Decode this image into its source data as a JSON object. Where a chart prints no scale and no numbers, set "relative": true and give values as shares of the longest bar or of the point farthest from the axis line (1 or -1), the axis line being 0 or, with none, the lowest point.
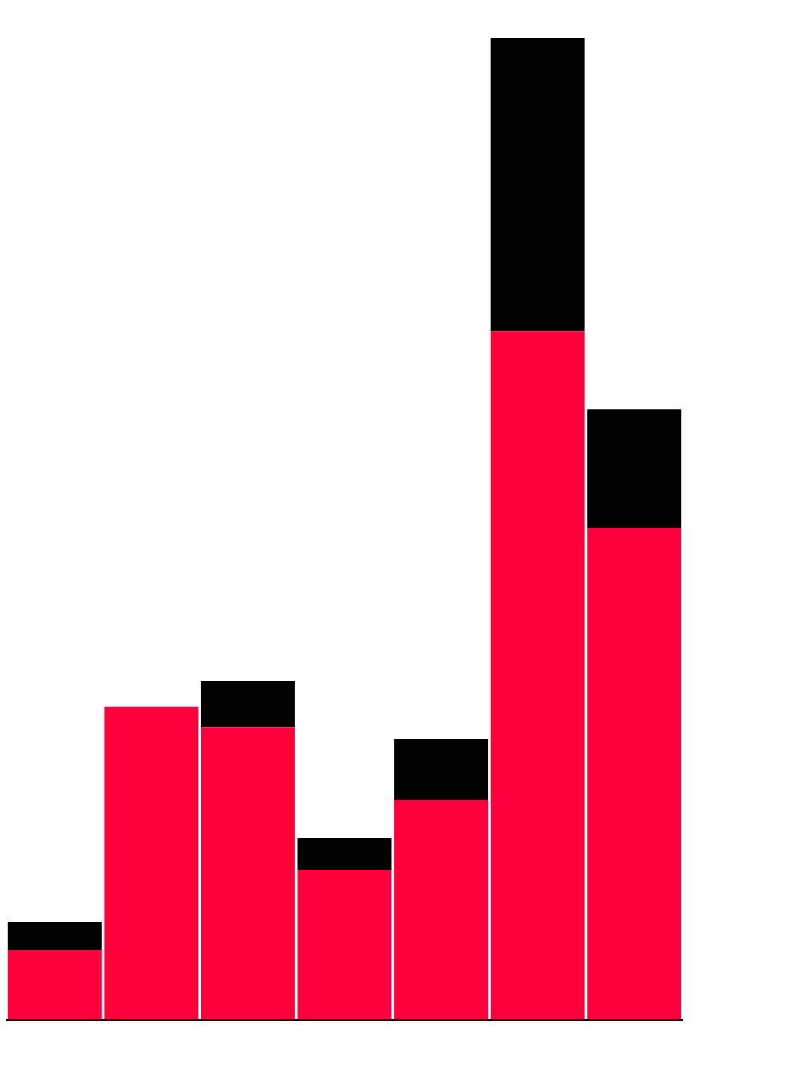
{
  "chart_data": {
    "type": "bar",
    "stacked": true,
    "relative": true,
    "legend": false,
    "grid": false,
    "categories": [
      null,
      null,
      null,
      null,
      null,
      null,
      null
    ],
    "series": [
      {
        "color": "#ff003c",
        "values": [
          0.071,
          0.319,
          0.298,
          0.153,
          0.224,
          0.702,
          0.501
        ]
      },
      {
        "color": "#000000",
        "values": [
          0.029,
          0,
          0.047,
          0.032,
          0.062,
          0.298,
          0.121
        ]
      }
    ]
  }
}
